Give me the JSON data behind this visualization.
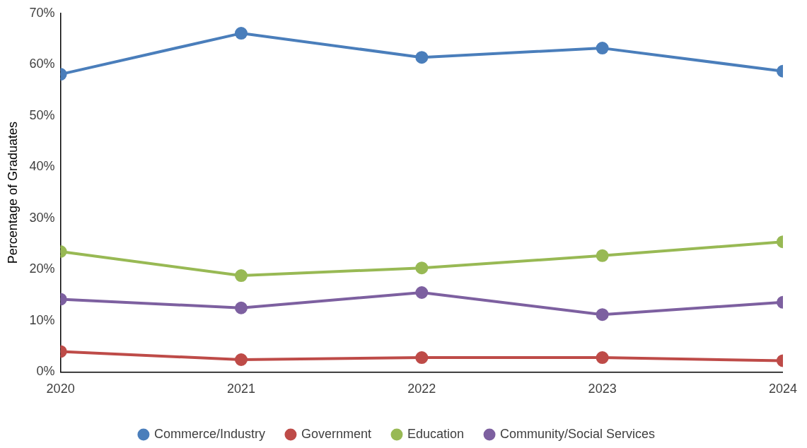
{
  "chart_data": {
    "type": "line",
    "ylabel": "Percentage of Graduates",
    "x": [
      2020,
      2021,
      2022,
      2023,
      2024
    ],
    "xlim": [
      2020,
      2024
    ],
    "xticks": [
      2020,
      2021,
      2022,
      2023,
      2024
    ],
    "ylim": [
      0,
      70
    ],
    "yticks": [
      {
        "value": 0,
        "label": "0%"
      },
      {
        "value": 10,
        "label": "10%"
      },
      {
        "value": 20,
        "label": "20%"
      },
      {
        "value": 30,
        "label": "30%"
      },
      {
        "value": 40,
        "label": "40%"
      },
      {
        "value": 50,
        "label": "50%"
      },
      {
        "value": 60,
        "label": "60%"
      },
      {
        "value": 70,
        "label": "70%"
      }
    ],
    "grid": false,
    "legend": "bottom",
    "marker": "circle",
    "line_style": "solid",
    "series": [
      {
        "name": "Commerce/Industry",
        "color": "#4a7ebb",
        "values": [
          58.1,
          66.1,
          61.4,
          63.2,
          58.7
        ]
      },
      {
        "name": "Government",
        "color": "#be4b48",
        "values": [
          4.0,
          2.4,
          2.8,
          2.8,
          2.2
        ]
      },
      {
        "name": "Education",
        "color": "#98b954",
        "values": [
          23.5,
          18.8,
          20.3,
          22.7,
          25.4
        ]
      },
      {
        "name": "Community/Social Services",
        "color": "#7d60a0",
        "values": [
          14.2,
          12.5,
          15.5,
          11.2,
          13.6
        ]
      }
    ]
  }
}
